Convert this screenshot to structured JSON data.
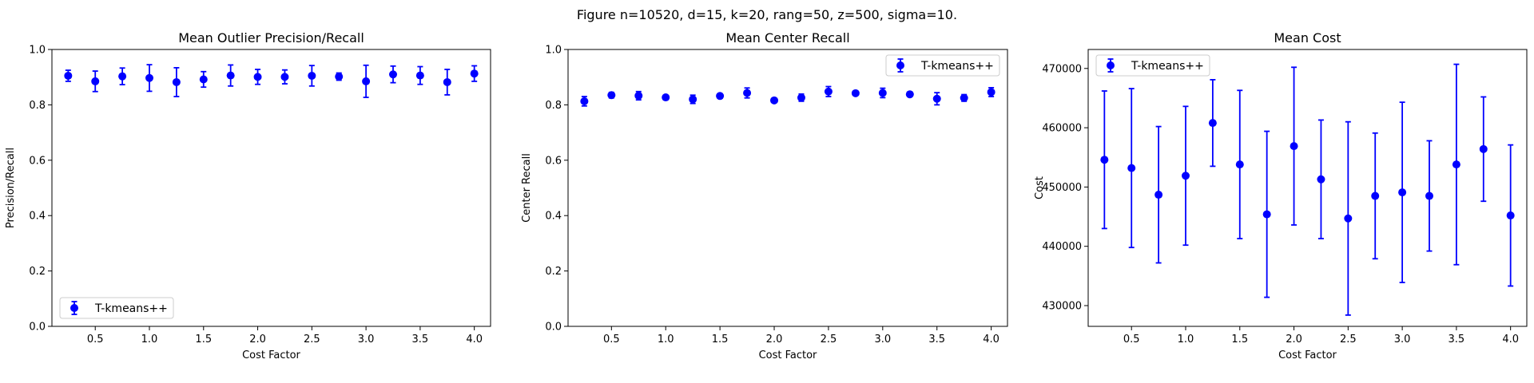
{
  "figure_title": "Figure n=10520, d=15, k=20, rang=50, z=500, sigma=10.",
  "series_color": "#0000ff",
  "chart_data": [
    {
      "type": "scatter",
      "title": "Mean Outlier Precision/Recall",
      "xlabel": "Cost Factor",
      "ylabel": "Precision/Recall",
      "xlim": [
        0.1,
        4.15
      ],
      "ylim": [
        0.0,
        1.0
      ],
      "xticks": [
        "0.5",
        "1.0",
        "1.5",
        "2.0",
        "2.5",
        "3.0",
        "3.5",
        "4.0"
      ],
      "yticks": [
        "0.0",
        "0.2",
        "0.4",
        "0.6",
        "0.8",
        "1.0"
      ],
      "legend_loc": "lower-left",
      "series": [
        {
          "name": "T-kmeans++",
          "x": [
            0.25,
            0.5,
            0.75,
            1.0,
            1.25,
            1.5,
            1.75,
            2.0,
            2.25,
            2.5,
            2.75,
            3.0,
            3.25,
            3.5,
            3.75,
            4.0
          ],
          "y": [
            0.905,
            0.885,
            0.903,
            0.897,
            0.882,
            0.892,
            0.906,
            0.901,
            0.901,
            0.905,
            0.902,
            0.885,
            0.91,
            0.906,
            0.882,
            0.913
          ],
          "err": [
            0.02,
            0.037,
            0.03,
            0.048,
            0.052,
            0.028,
            0.038,
            0.027,
            0.025,
            0.037,
            0.013,
            0.058,
            0.03,
            0.032,
            0.046,
            0.028
          ]
        }
      ]
    },
    {
      "type": "scatter",
      "title": "Mean Center Recall",
      "xlabel": "Cost Factor",
      "ylabel": "Center Recall",
      "xlim": [
        0.1,
        4.15
      ],
      "ylim": [
        0.0,
        1.0
      ],
      "xticks": [
        "0.5",
        "1.0",
        "1.5",
        "2.0",
        "2.5",
        "3.0",
        "3.5",
        "4.0"
      ],
      "yticks": [
        "0.0",
        "0.2",
        "0.4",
        "0.6",
        "0.8",
        "1.0"
      ],
      "legend_loc": "top-right",
      "series": [
        {
          "name": "T-kmeans++",
          "x": [
            0.25,
            0.5,
            0.75,
            1.0,
            1.25,
            1.5,
            1.75,
            2.0,
            2.25,
            2.5,
            2.75,
            3.0,
            3.25,
            3.5,
            3.75,
            4.0
          ],
          "y": [
            0.813,
            0.835,
            0.833,
            0.827,
            0.82,
            0.832,
            0.843,
            0.816,
            0.826,
            0.848,
            0.842,
            0.843,
            0.838,
            0.822,
            0.825,
            0.846
          ],
          "err": [
            0.017,
            0.01,
            0.015,
            0.007,
            0.015,
            0.008,
            0.018,
            0.007,
            0.013,
            0.018,
            0.007,
            0.017,
            0.008,
            0.022,
            0.012,
            0.016
          ]
        }
      ]
    },
    {
      "type": "scatter",
      "title": "Mean Cost",
      "xlabel": "Cost Factor",
      "ylabel": "Cost",
      "xlim": [
        0.1,
        4.15
      ],
      "ylim": [
        426500,
        473200
      ],
      "xticks": [
        "0.5",
        "1.0",
        "1.5",
        "2.0",
        "2.5",
        "3.0",
        "3.5",
        "4.0"
      ],
      "yticks": [
        "430000",
        "440000",
        "450000",
        "460000",
        "470000"
      ],
      "legend_loc": "top-left",
      "series": [
        {
          "name": "T-kmeans++",
          "x": [
            0.25,
            0.5,
            0.75,
            1.0,
            1.25,
            1.5,
            1.75,
            2.0,
            2.25,
            2.5,
            2.75,
            3.0,
            3.25,
            3.5,
            3.75,
            4.0
          ],
          "y": [
            454600,
            453200,
            448700,
            451900,
            460800,
            453800,
            445400,
            456900,
            451300,
            444700,
            448500,
            449100,
            448500,
            453800,
            456400,
            445200
          ],
          "err": [
            11600,
            13400,
            11500,
            11700,
            7300,
            12500,
            14000,
            13300,
            10000,
            16300,
            10600,
            15200,
            9300,
            16900,
            8800,
            11900
          ]
        }
      ]
    }
  ]
}
